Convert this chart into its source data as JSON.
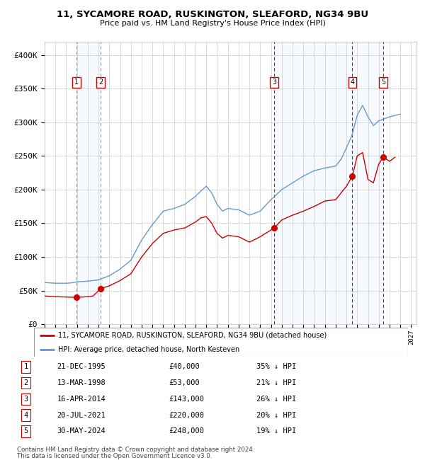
{
  "title1": "11, SYCAMORE ROAD, RUSKINGTON, SLEAFORD, NG34 9BU",
  "title2": "Price paid vs. HM Land Registry's House Price Index (HPI)",
  "xlim_start": 1993.0,
  "xlim_end": 2027.5,
  "ylim": [
    0,
    420000
  ],
  "yticks": [
    0,
    50000,
    100000,
    150000,
    200000,
    250000,
    300000,
    350000,
    400000
  ],
  "ytick_labels": [
    "£0",
    "£50K",
    "£100K",
    "£150K",
    "£200K",
    "£250K",
    "£300K",
    "£350K",
    "£400K"
  ],
  "sale_dates": [
    1995.97,
    1998.2,
    2014.29,
    2021.55,
    2024.41
  ],
  "sale_prices": [
    40000,
    53000,
    143000,
    220000,
    248000
  ],
  "sale_labels": [
    "1",
    "2",
    "3",
    "4",
    "5"
  ],
  "sale_info": [
    {
      "num": 1,
      "date": "21-DEC-1995",
      "price": "£40,000",
      "hpi": "35% ↓ HPI"
    },
    {
      "num": 2,
      "date": "13-MAR-1998",
      "price": "£53,000",
      "hpi": "21% ↓ HPI"
    },
    {
      "num": 3,
      "date": "16-APR-2014",
      "price": "£143,000",
      "hpi": "26% ↓ HPI"
    },
    {
      "num": 4,
      "date": "20-JUL-2021",
      "price": "£220,000",
      "hpi": "20% ↓ HPI"
    },
    {
      "num": 5,
      "date": "30-MAY-2024",
      "price": "£248,000",
      "hpi": "19% ↓ HPI"
    }
  ],
  "hpi_anchors": [
    [
      1993.0,
      62000
    ],
    [
      1994.0,
      61000
    ],
    [
      1995.0,
      61000
    ],
    [
      1995.5,
      61500
    ],
    [
      1996.0,
      63000
    ],
    [
      1997.0,
      64000
    ],
    [
      1998.0,
      66000
    ],
    [
      1999.0,
      72000
    ],
    [
      2000.0,
      82000
    ],
    [
      2001.0,
      95000
    ],
    [
      2002.0,
      125000
    ],
    [
      2003.0,
      148000
    ],
    [
      2004.0,
      168000
    ],
    [
      2005.0,
      172000
    ],
    [
      2006.0,
      178000
    ],
    [
      2007.0,
      190000
    ],
    [
      2007.5,
      198000
    ],
    [
      2008.0,
      205000
    ],
    [
      2008.5,
      195000
    ],
    [
      2009.0,
      178000
    ],
    [
      2009.5,
      168000
    ],
    [
      2010.0,
      172000
    ],
    [
      2011.0,
      170000
    ],
    [
      2012.0,
      162000
    ],
    [
      2013.0,
      168000
    ],
    [
      2014.0,
      185000
    ],
    [
      2015.0,
      200000
    ],
    [
      2016.0,
      210000
    ],
    [
      2017.0,
      220000
    ],
    [
      2018.0,
      228000
    ],
    [
      2019.0,
      232000
    ],
    [
      2020.0,
      235000
    ],
    [
      2020.5,
      245000
    ],
    [
      2021.0,
      262000
    ],
    [
      2021.5,
      280000
    ],
    [
      2022.0,
      310000
    ],
    [
      2022.5,
      325000
    ],
    [
      2023.0,
      308000
    ],
    [
      2023.5,
      295000
    ],
    [
      2024.0,
      302000
    ],
    [
      2024.5,
      305000
    ],
    [
      2025.0,
      308000
    ],
    [
      2025.5,
      310000
    ],
    [
      2026.0,
      312000
    ]
  ],
  "red_anchors": [
    [
      1993.0,
      42000
    ],
    [
      1994.0,
      41000
    ],
    [
      1995.0,
      40500
    ],
    [
      1995.97,
      40000
    ],
    [
      1996.5,
      40500
    ],
    [
      1997.0,
      41000
    ],
    [
      1997.5,
      42000
    ],
    [
      1998.2,
      53000
    ],
    [
      1999.0,
      57000
    ],
    [
      2000.0,
      65000
    ],
    [
      2001.0,
      75000
    ],
    [
      2002.0,
      100000
    ],
    [
      2003.0,
      120000
    ],
    [
      2004.0,
      135000
    ],
    [
      2005.0,
      140000
    ],
    [
      2006.0,
      143000
    ],
    [
      2007.0,
      152000
    ],
    [
      2007.5,
      158000
    ],
    [
      2008.0,
      160000
    ],
    [
      2008.5,
      150000
    ],
    [
      2009.0,
      135000
    ],
    [
      2009.5,
      128000
    ],
    [
      2010.0,
      132000
    ],
    [
      2011.0,
      130000
    ],
    [
      2012.0,
      122000
    ],
    [
      2013.0,
      130000
    ],
    [
      2014.0,
      140000
    ],
    [
      2014.29,
      143000
    ],
    [
      2015.0,
      155000
    ],
    [
      2016.0,
      162000
    ],
    [
      2017.0,
      168000
    ],
    [
      2018.0,
      175000
    ],
    [
      2019.0,
      183000
    ],
    [
      2020.0,
      185000
    ],
    [
      2020.5,
      195000
    ],
    [
      2021.0,
      205000
    ],
    [
      2021.55,
      220000
    ],
    [
      2022.0,
      250000
    ],
    [
      2022.5,
      255000
    ],
    [
      2023.0,
      215000
    ],
    [
      2023.5,
      210000
    ],
    [
      2024.0,
      238000
    ],
    [
      2024.41,
      248000
    ],
    [
      2025.0,
      242000
    ],
    [
      2025.5,
      248000
    ]
  ],
  "red_line_color": "#cc0000",
  "blue_line_color": "#6699cc",
  "bg_shaded_color": "#ddeeff",
  "dashed_red_color": "#dd0000",
  "dashed_grey_color": "#999999",
  "legend_line1": "11, SYCAMORE ROAD, RUSKINGTON, SLEAFORD, NG34 9BU (detached house)",
  "legend_line2": "HPI: Average price, detached house, North Kesteven",
  "footnote1": "Contains HM Land Registry data © Crown copyright and database right 2024.",
  "footnote2": "This data is licensed under the Open Government Licence v3.0."
}
